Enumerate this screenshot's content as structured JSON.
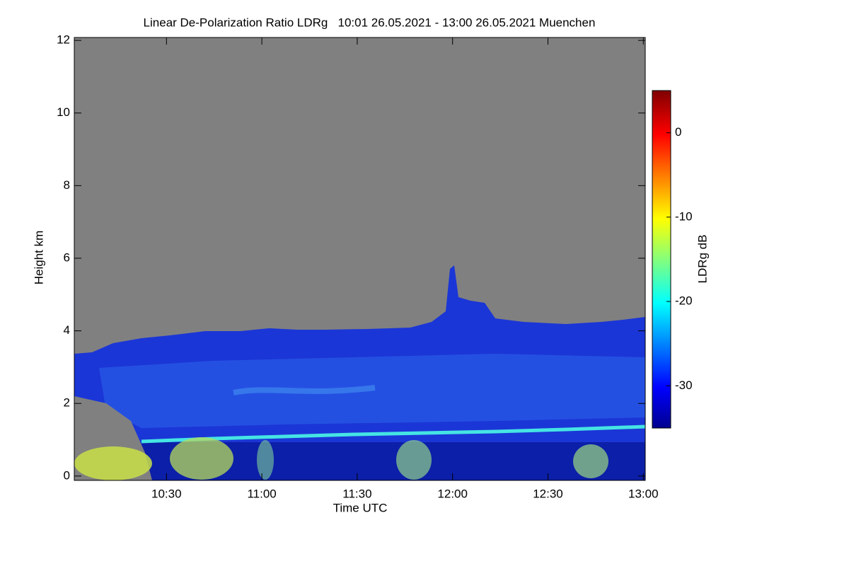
{
  "chart_data": {
    "type": "heatmap",
    "title": "Linear De-Polarization Ratio LDRg   10:01 26.05.2021 - 13:00 26.05.2021 Muenchen",
    "x_label": "Time UTC",
    "y_label": "Height km",
    "colorbar_label": "LDRg dB",
    "xlim": [
      10.0167,
      13.01
    ],
    "xticks": [
      {
        "value": 10.5,
        "label": "10:30"
      },
      {
        "value": 11.0,
        "label": "11:00"
      },
      {
        "value": 11.5,
        "label": "11:30"
      },
      {
        "value": 12.0,
        "label": "12:00"
      },
      {
        "value": 12.5,
        "label": "12:30"
      },
      {
        "value": 13.0,
        "label": "13:00"
      }
    ],
    "ylim": [
      -0.12,
      12.08
    ],
    "yticks": [
      0,
      2,
      4,
      6,
      8,
      10,
      12
    ],
    "clim": [
      -35,
      5
    ],
    "cticks": [
      -30,
      -20,
      -10,
      0
    ]
  }
}
